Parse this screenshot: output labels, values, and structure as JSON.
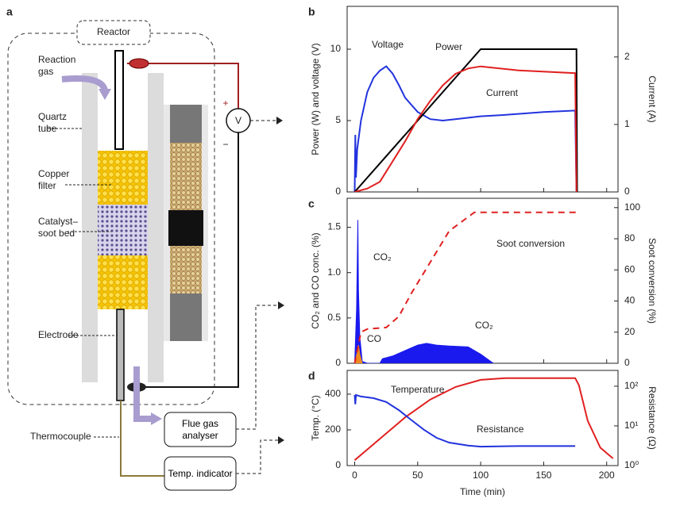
{
  "diagram": {
    "panel": "a",
    "reactor": "Reactor",
    "reaction_gas": "Reaction gas",
    "quartz_tube": "Quartz tube",
    "copper_filter": "Copper filter",
    "catalyst_bed": "Catalyst–soot bed",
    "electrode": "Electrode",
    "thermocouple": "Thermocouple",
    "flue_gas": "Flue gas analyser",
    "temp_indicator": "Temp. indicator",
    "meter": "V",
    "plus": "+",
    "minus": "−"
  },
  "chart_data": [
    {
      "type": "line",
      "panel": "b",
      "ylabel": "Power (W) and voltage (V)",
      "y2label": "Current (A)",
      "xlim": [
        -6,
        209
      ],
      "ylim": [
        0,
        13
      ],
      "yticks": [
        0,
        5,
        10
      ],
      "y2lim": [
        0,
        2.75
      ],
      "y2ticks": [
        0,
        1,
        2
      ],
      "series": [
        {
          "name": "Voltage",
          "color": "#2233dd",
          "x": [
            0,
            0.5,
            1,
            2,
            5,
            10,
            15,
            20,
            25,
            30,
            35,
            40,
            50,
            60,
            70,
            80,
            100,
            120,
            150,
            175,
            176
          ],
          "values": [
            0,
            4,
            1,
            3,
            5,
            7,
            8,
            8.5,
            8.8,
            8.3,
            7.5,
            6.6,
            5.6,
            5.1,
            5.0,
            5.1,
            5.3,
            5.4,
            5.6,
            5.7,
            0
          ]
        },
        {
          "name": "Power",
          "color": "#000000",
          "x": [
            0,
            100,
            176,
            176.5
          ],
          "values": [
            0,
            10,
            10,
            0
          ]
        },
        {
          "name": "Current",
          "color": "#e02020",
          "axis": "y2",
          "x": [
            0,
            10,
            20,
            30,
            40,
            50,
            60,
            70,
            80,
            90,
            100,
            130,
            175,
            176
          ],
          "values": [
            0,
            0.05,
            0.15,
            0.45,
            0.75,
            1.08,
            1.35,
            1.58,
            1.75,
            1.83,
            1.86,
            1.8,
            1.76,
            0
          ]
        }
      ]
    },
    {
      "type": "line",
      "panel": "c",
      "ylabel": "CO₂ and CO conc. (%)",
      "y2label": "Soot conversion (%)",
      "xlim": [
        -6,
        209
      ],
      "ylim": [
        0,
        1.82
      ],
      "yticks": [
        0,
        0.5,
        {
          "value": 1,
          "label": "1.0"
        },
        1.5
      ],
      "y2lim": [
        0,
        106
      ],
      "y2ticks": [
        0,
        20,
        40,
        60,
        80,
        100
      ],
      "annotations": [
        "CO₂"
      ],
      "series": [
        {
          "name": "CO₂",
          "color": "#1a1aee",
          "fill": true,
          "x": [
            0,
            1.5,
            2.5,
            3,
            4,
            6,
            10,
            20,
            22,
            30,
            40,
            50,
            57,
            65,
            75,
            90,
            100,
            110
          ],
          "values": [
            0,
            0.6,
            1.58,
            0.8,
            0.3,
            0.02,
            0,
            0,
            0.05,
            0.08,
            0.14,
            0.2,
            0.22,
            0.2,
            0.19,
            0.18,
            0.1,
            0
          ]
        },
        {
          "name": "CO",
          "color": "#f08a20",
          "fill": true,
          "x": [
            0,
            2,
            3,
            4,
            6
          ],
          "values": [
            0,
            0.12,
            0.2,
            0.1,
            0
          ]
        },
        {
          "name": "Soot conversion",
          "color": "#e02020",
          "dashed": true,
          "axis": "y2",
          "x": [
            0,
            5,
            10,
            25,
            35,
            45,
            60,
            75,
            95,
            176
          ],
          "values": [
            0,
            20,
            22,
            23,
            30,
            45,
            65,
            85,
            97,
            97
          ]
        }
      ]
    },
    {
      "type": "line",
      "panel": "d",
      "xlabel": "Time (min)",
      "ylabel": "Temp. (°C)",
      "y2label": "Resistance (Ω)",
      "xlim": [
        -6,
        209
      ],
      "xticks": [
        0,
        50,
        100,
        150,
        200
      ],
      "ylim": [
        0,
        533
      ],
      "yticks": [
        0,
        200,
        400
      ],
      "y2lim": [
        1,
        250
      ],
      "y2log": true,
      "y2ticks": [
        {
          "value": 1,
          "label": "10⁰"
        },
        {
          "value": 10,
          "label": "10¹"
        },
        {
          "value": 100,
          "label": "10²"
        }
      ],
      "series": [
        {
          "name": "Temperature",
          "color": "#e02020",
          "x": [
            0,
            5,
            20,
            40,
            60,
            80,
            100,
            120,
            175,
            178,
            185,
            195,
            205
          ],
          "values": [
            30,
            60,
            150,
            270,
            370,
            440,
            480,
            490,
            490,
            450,
            250,
            100,
            40
          ]
        },
        {
          "name": "Resistance",
          "color": "#2233dd",
          "axis": "y2",
          "x": [
            0,
            0.5,
            1,
            5,
            15,
            25,
            35,
            45,
            55,
            65,
            75,
            90,
            100,
            130,
            175
          ],
          "values": [
            60,
            35,
            60,
            55,
            50,
            40,
            25,
            14,
            8,
            5,
            3.8,
            3.2,
            3,
            3.1,
            3.1
          ]
        }
      ]
    }
  ]
}
